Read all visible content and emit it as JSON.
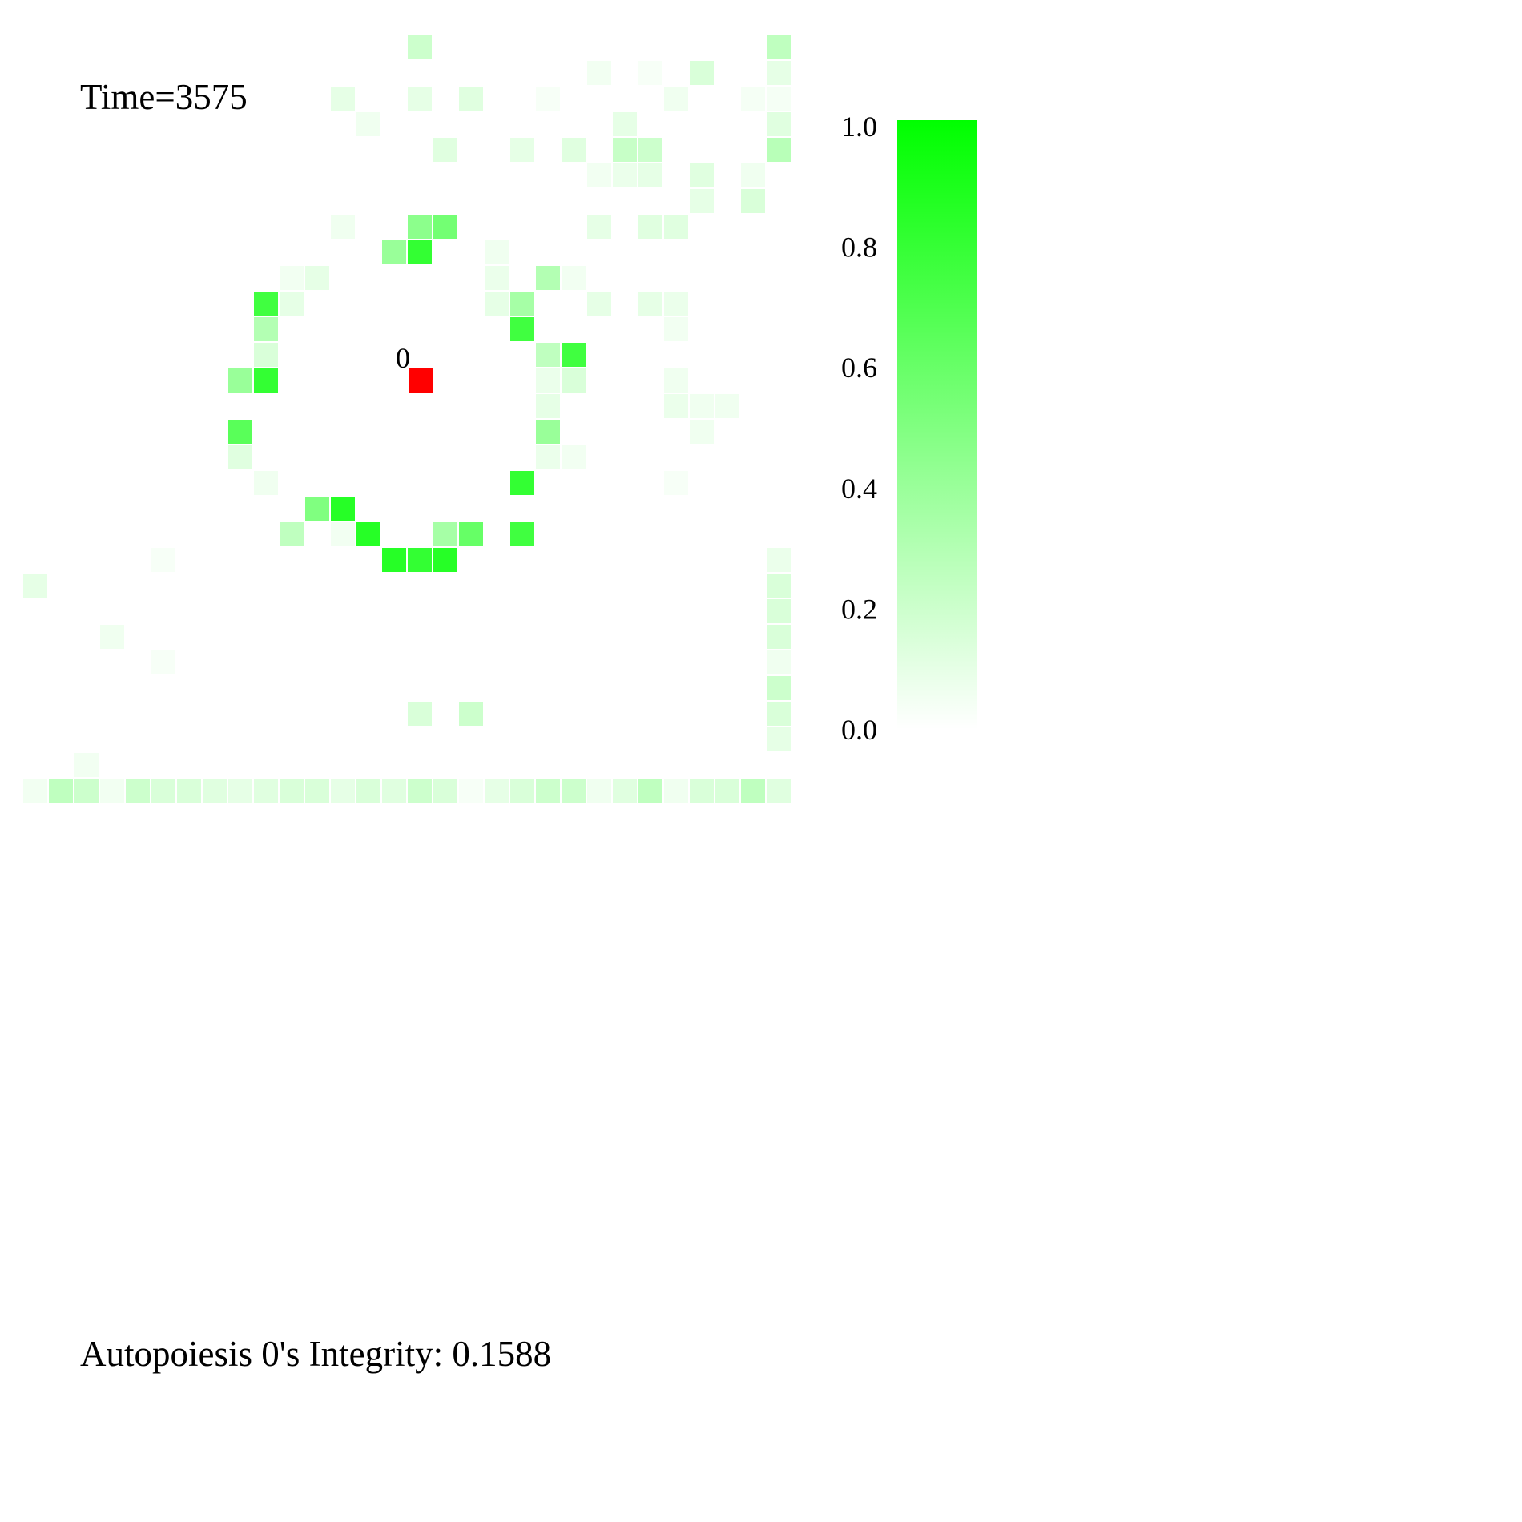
{
  "header": {
    "time_label": "Time=3575"
  },
  "footer": {
    "integrity_label": "Autopoiesis 0's Integrity: 0.1588"
  },
  "chart_data": {
    "type": "heatmap",
    "grid_size": [
      30,
      30
    ],
    "value_range": [
      0.0,
      1.0
    ],
    "colormap": {
      "low": "#ffffff",
      "high": "#00ff00"
    },
    "colorbar_ticks": [
      "0.0",
      "0.2",
      "0.4",
      "0.6",
      "0.8",
      "1.0"
    ],
    "marker": {
      "label": "0",
      "row": 14,
      "col": 15,
      "color": "#ff0000"
    },
    "cells": [
      [
        1,
        15,
        0.2
      ],
      [
        1,
        29,
        0.25
      ],
      [
        2,
        22,
        0.05
      ],
      [
        2,
        24,
        0.03
      ],
      [
        2,
        26,
        0.15
      ],
      [
        2,
        29,
        0.1
      ],
      [
        3,
        12,
        0.1
      ],
      [
        3,
        15,
        0.1
      ],
      [
        3,
        17,
        0.12
      ],
      [
        3,
        20,
        0.03
      ],
      [
        3,
        25,
        0.06
      ],
      [
        3,
        28,
        0.04
      ],
      [
        3,
        29,
        0.04
      ],
      [
        4,
        13,
        0.06
      ],
      [
        4,
        23,
        0.1
      ],
      [
        4,
        29,
        0.12
      ],
      [
        5,
        16,
        0.12
      ],
      [
        5,
        19,
        0.1
      ],
      [
        5,
        21,
        0.12
      ],
      [
        5,
        23,
        0.22
      ],
      [
        5,
        24,
        0.2
      ],
      [
        5,
        29,
        0.28
      ],
      [
        6,
        22,
        0.05
      ],
      [
        6,
        23,
        0.08
      ],
      [
        6,
        24,
        0.1
      ],
      [
        6,
        26,
        0.12
      ],
      [
        6,
        28,
        0.06
      ],
      [
        7,
        26,
        0.1
      ],
      [
        7,
        28,
        0.15
      ],
      [
        8,
        12,
        0.06
      ],
      [
        8,
        15,
        0.45
      ],
      [
        8,
        16,
        0.55
      ],
      [
        8,
        22,
        0.1
      ],
      [
        8,
        24,
        0.12
      ],
      [
        8,
        25,
        0.12
      ],
      [
        9,
        14,
        0.4
      ],
      [
        9,
        15,
        0.8
      ],
      [
        9,
        18,
        0.06
      ],
      [
        10,
        10,
        0.05
      ],
      [
        10,
        11,
        0.1
      ],
      [
        10,
        18,
        0.08
      ],
      [
        10,
        20,
        0.3
      ],
      [
        10,
        21,
        0.05
      ],
      [
        11,
        9,
        0.75
      ],
      [
        11,
        10,
        0.1
      ],
      [
        11,
        18,
        0.1
      ],
      [
        11,
        19,
        0.35
      ],
      [
        11,
        22,
        0.1
      ],
      [
        11,
        24,
        0.1
      ],
      [
        11,
        25,
        0.08
      ],
      [
        12,
        9,
        0.3
      ],
      [
        12,
        19,
        0.75
      ],
      [
        12,
        25,
        0.05
      ],
      [
        13,
        9,
        0.15
      ],
      [
        13,
        20,
        0.25
      ],
      [
        13,
        21,
        0.75
      ],
      [
        14,
        8,
        0.4
      ],
      [
        14,
        9,
        0.8
      ],
      [
        14,
        20,
        0.08
      ],
      [
        14,
        21,
        0.15
      ],
      [
        14,
        25,
        0.06
      ],
      [
        15,
        20,
        0.1
      ],
      [
        15,
        25,
        0.08
      ],
      [
        15,
        26,
        0.06
      ],
      [
        15,
        27,
        0.06
      ],
      [
        16,
        8,
        0.65
      ],
      [
        16,
        20,
        0.4
      ],
      [
        16,
        26,
        0.06
      ],
      [
        17,
        8,
        0.12
      ],
      [
        17,
        20,
        0.08
      ],
      [
        17,
        21,
        0.05
      ],
      [
        18,
        9,
        0.06
      ],
      [
        18,
        19,
        0.8
      ],
      [
        18,
        25,
        0.03
      ],
      [
        19,
        11,
        0.5
      ],
      [
        19,
        12,
        0.85
      ],
      [
        20,
        10,
        0.25
      ],
      [
        20,
        12,
        0.05
      ],
      [
        20,
        13,
        0.85
      ],
      [
        20,
        16,
        0.35
      ],
      [
        20,
        17,
        0.6
      ],
      [
        20,
        19,
        0.75
      ],
      [
        21,
        5,
        0.03
      ],
      [
        21,
        14,
        0.85
      ],
      [
        21,
        15,
        0.8
      ],
      [
        21,
        16,
        0.85
      ],
      [
        21,
        29,
        0.08
      ],
      [
        22,
        0,
        0.1
      ],
      [
        22,
        29,
        0.15
      ],
      [
        23,
        29,
        0.15
      ],
      [
        24,
        3,
        0.06
      ],
      [
        24,
        29,
        0.15
      ],
      [
        25,
        5,
        0.03
      ],
      [
        25,
        29,
        0.06
      ],
      [
        26,
        29,
        0.2
      ],
      [
        27,
        15,
        0.15
      ],
      [
        27,
        17,
        0.2
      ],
      [
        27,
        29,
        0.15
      ],
      [
        28,
        29,
        0.1
      ],
      [
        29,
        2,
        0.05
      ],
      [
        30,
        0,
        0.05
      ],
      [
        30,
        1,
        0.25
      ],
      [
        30,
        2,
        0.2
      ],
      [
        30,
        3,
        0.05
      ],
      [
        30,
        4,
        0.2
      ],
      [
        30,
        5,
        0.15
      ],
      [
        30,
        6,
        0.15
      ],
      [
        30,
        7,
        0.12
      ],
      [
        30,
        8,
        0.1
      ],
      [
        30,
        9,
        0.12
      ],
      [
        30,
        10,
        0.15
      ],
      [
        30,
        11,
        0.15
      ],
      [
        30,
        12,
        0.1
      ],
      [
        30,
        13,
        0.15
      ],
      [
        30,
        14,
        0.12
      ],
      [
        30,
        15,
        0.2
      ],
      [
        30,
        16,
        0.15
      ],
      [
        30,
        17,
        0.03
      ],
      [
        30,
        18,
        0.1
      ],
      [
        30,
        19,
        0.15
      ],
      [
        30,
        20,
        0.2
      ],
      [
        30,
        21,
        0.2
      ],
      [
        30,
        22,
        0.06
      ],
      [
        30,
        23,
        0.12
      ],
      [
        30,
        24,
        0.25
      ],
      [
        30,
        25,
        0.06
      ],
      [
        30,
        26,
        0.15
      ],
      [
        30,
        27,
        0.15
      ],
      [
        30,
        28,
        0.25
      ],
      [
        30,
        29,
        0.12
      ]
    ]
  }
}
